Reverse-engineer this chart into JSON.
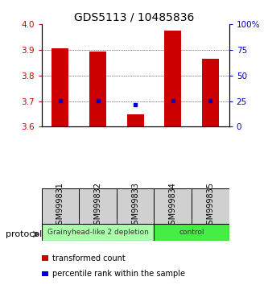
{
  "title": "GDS5113 / 10485836",
  "samples": [
    "GSM999831",
    "GSM999832",
    "GSM999833",
    "GSM999834",
    "GSM999835"
  ],
  "bar_bottoms": [
    3.6,
    3.6,
    3.6,
    3.6,
    3.6
  ],
  "bar_tops": [
    3.906,
    3.893,
    3.647,
    3.975,
    3.865
  ],
  "blue_dots": [
    3.703,
    3.703,
    3.685,
    3.703,
    3.703
  ],
  "ylim": [
    3.6,
    4.0
  ],
  "yticks_left": [
    3.6,
    3.7,
    3.8,
    3.9,
    4.0
  ],
  "yticks_right": [
    0,
    25,
    50,
    75,
    100
  ],
  "bar_color": "#cc0000",
  "dot_color": "#0000cc",
  "groups": [
    {
      "label": "Grainyhead-like 2 depletion",
      "samples": [
        0,
        1,
        2
      ],
      "color": "#aaffaa"
    },
    {
      "label": "control",
      "samples": [
        3,
        4
      ],
      "color": "#44ee44"
    }
  ],
  "protocol_label": "protocol",
  "legend_bar_label": "transformed count",
  "legend_dot_label": "percentile rank within the sample",
  "background_color": "#ffffff",
  "title_fontsize": 10,
  "tick_fontsize": 7.5,
  "sample_fontsize": 7
}
